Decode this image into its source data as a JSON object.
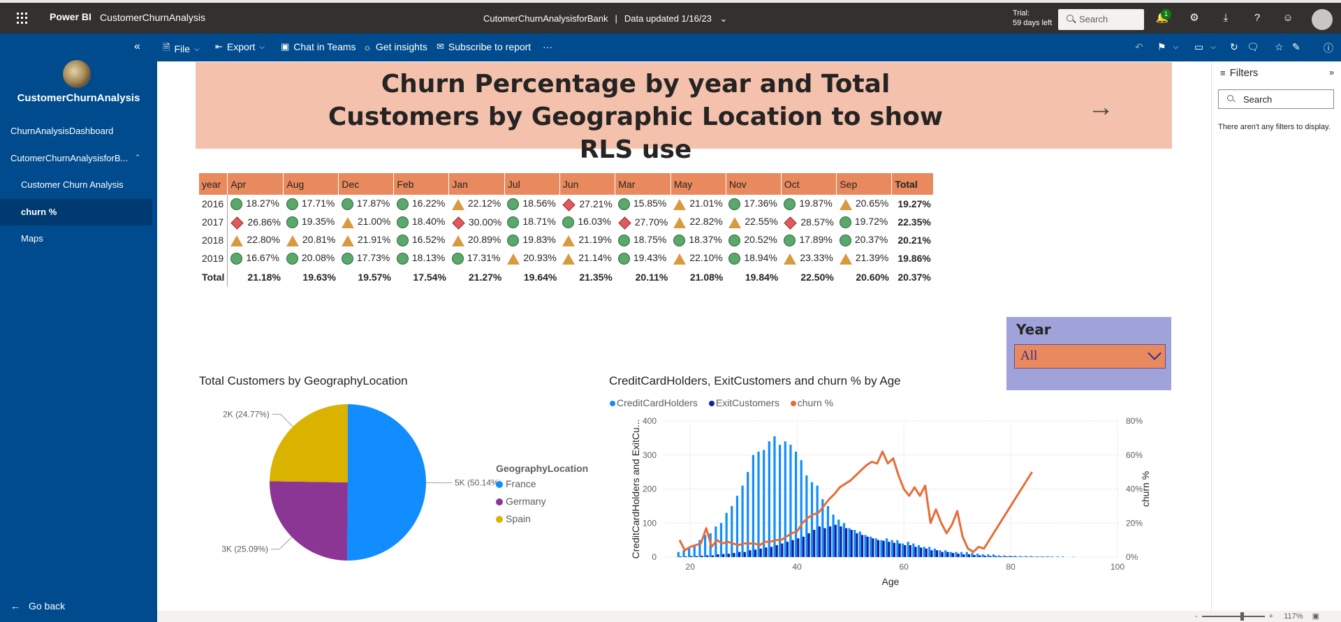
{
  "topbar": {
    "brand": "Power BI",
    "workspace": "CustomerChurnAnalysis",
    "report_name": "CutomerChurnAnalysisforBank",
    "separator": "|",
    "data_updated": "Data updated 1/16/23",
    "trial_line1": "Trial:",
    "trial_line2": "59 days left",
    "search_placeholder": "Search",
    "notification_count": "1"
  },
  "sidebar": {
    "workspace_name": "CustomerChurnAnalysis",
    "items": [
      {
        "label": "ChurnAnalysisDashboard"
      },
      {
        "label": "CutomerChurnAnalysisforB..."
      },
      {
        "label": "Customer Churn Analysis"
      },
      {
        "label": "churn %"
      },
      {
        "label": "Maps"
      }
    ],
    "go_back": "Go back"
  },
  "actions": {
    "file": "File",
    "export": "Export",
    "chat_in_teams": "Chat in Teams",
    "get_insights": "Get insights",
    "subscribe": "Subscribe to report",
    "more": "···"
  },
  "banner": {
    "title": "Churn Percentage by year and Total Customers by Geographic Location to show RLS use"
  },
  "matrix": {
    "headers": [
      "year",
      "Apr",
      "Aug",
      "Dec",
      "Feb",
      "Jan",
      "Jul",
      "Jun",
      "Mar",
      "May",
      "Nov",
      "Oct",
      "Sep",
      "Total"
    ],
    "rows": [
      {
        "year": "2016",
        "cells": [
          [
            "circle",
            "18.27%"
          ],
          [
            "circle",
            "17.71%"
          ],
          [
            "circle",
            "17.87%"
          ],
          [
            "circle",
            "16.22%"
          ],
          [
            "tri",
            "22.12%"
          ],
          [
            "circle",
            "18.56%"
          ],
          [
            "diamond",
            "27.21%"
          ],
          [
            "circle",
            "15.85%"
          ],
          [
            "tri",
            "21.01%"
          ],
          [
            "circle",
            "17.36%"
          ],
          [
            "circle",
            "19.87%"
          ],
          [
            "tri",
            "20.65%"
          ]
        ],
        "total": "19.27%"
      },
      {
        "year": "2017",
        "cells": [
          [
            "diamond",
            "26.86%"
          ],
          [
            "circle",
            "19.35%"
          ],
          [
            "tri",
            "21.00%"
          ],
          [
            "circle",
            "18.40%"
          ],
          [
            "diamond",
            "30.00%"
          ],
          [
            "circle",
            "18.71%"
          ],
          [
            "circle",
            "16.03%"
          ],
          [
            "diamond",
            "27.70%"
          ],
          [
            "tri",
            "22.82%"
          ],
          [
            "tri",
            "22.55%"
          ],
          [
            "diamond",
            "28.57%"
          ],
          [
            "circle",
            "19.72%"
          ]
        ],
        "total": "22.35%"
      },
      {
        "year": "2018",
        "cells": [
          [
            "tri",
            "22.80%"
          ],
          [
            "tri",
            "20.81%"
          ],
          [
            "tri",
            "21.91%"
          ],
          [
            "circle",
            "16.52%"
          ],
          [
            "tri",
            "20.89%"
          ],
          [
            "circle",
            "19.83%"
          ],
          [
            "tri",
            "21.19%"
          ],
          [
            "circle",
            "18.75%"
          ],
          [
            "circle",
            "18.37%"
          ],
          [
            "circle",
            "20.52%"
          ],
          [
            "circle",
            "17.89%"
          ],
          [
            "circle",
            "20.37%"
          ]
        ],
        "total": "20.21%"
      },
      {
        "year": "2019",
        "cells": [
          [
            "circle",
            "16.67%"
          ],
          [
            "circle",
            "20.08%"
          ],
          [
            "circle",
            "17.73%"
          ],
          [
            "circle",
            "18.13%"
          ],
          [
            "circle",
            "17.31%"
          ],
          [
            "tri",
            "20.93%"
          ],
          [
            "tri",
            "21.14%"
          ],
          [
            "circle",
            "19.43%"
          ],
          [
            "tri",
            "22.10%"
          ],
          [
            "circle",
            "18.94%"
          ],
          [
            "tri",
            "23.33%"
          ],
          [
            "tri",
            "21.39%"
          ]
        ],
        "total": "19.86%"
      }
    ],
    "total_label": "Total",
    "totals": [
      "21.18%",
      "19.63%",
      "19.57%",
      "17.54%",
      "21.27%",
      "19.64%",
      "21.35%",
      "20.11%",
      "21.08%",
      "19.84%",
      "22.50%",
      "20.60%",
      "20.37%"
    ]
  },
  "slicer": {
    "title": "Year",
    "value": "All"
  },
  "filters": {
    "title": "Filters",
    "search_placeholder": "Search",
    "empty_message": "There aren't any filters to display."
  },
  "statusbar": {
    "zoom": "117%",
    "minus": "-",
    "plus": "+"
  },
  "colors": {
    "france": "#118dff",
    "germany": "#8b3594",
    "spain": "#d9b300",
    "credit": "#118dff",
    "exit": "#12239e",
    "churn": "#e66c37"
  },
  "chart_data": [
    {
      "type": "pie",
      "title": "Total Customers by GeographyLocation",
      "legend_title": "GeographyLocation",
      "categories": [
        "France",
        "Germany",
        "Spain"
      ],
      "values": [
        50.14,
        25.09,
        24.77
      ],
      "data_labels": [
        "5K (50.14%)",
        "3K (25.09%)",
        "2K (24.77%)"
      ]
    },
    {
      "type": "bar",
      "title": "CreditCardHolders, ExitCustomers and churn % by Age",
      "xlabel": "Age",
      "ylabel": "CreditCardHolders and ExitCu...",
      "y2label": "churn %",
      "xlim": [
        15,
        100
      ],
      "ylim": [
        0,
        400
      ],
      "y2lim": [
        0,
        80
      ],
      "x_ticks": [
        "20",
        "40",
        "60",
        "80",
        "100"
      ],
      "y_ticks": [
        "0",
        "100",
        "200",
        "300",
        "400"
      ],
      "y2_ticks": [
        "0%",
        "20%",
        "40%",
        "60%",
        "80%"
      ],
      "series": [
        {
          "name": "CreditCardHolders",
          "type": "bar",
          "x": [
            18,
            19,
            20,
            21,
            22,
            23,
            24,
            25,
            26,
            27,
            28,
            29,
            30,
            31,
            32,
            33,
            34,
            35,
            36,
            37,
            38,
            39,
            40,
            41,
            42,
            43,
            44,
            45,
            46,
            47,
            48,
            49,
            50,
            51,
            52,
            53,
            54,
            55,
            56,
            57,
            58,
            59,
            60,
            61,
            62,
            63,
            64,
            65,
            66,
            67,
            68,
            69,
            70,
            71,
            72,
            73,
            74,
            75,
            76,
            77,
            78,
            79,
            80,
            81,
            82,
            83,
            84,
            85,
            86,
            87,
            88,
            89,
            90,
            92
          ],
          "values": [
            15,
            20,
            28,
            35,
            50,
            65,
            70,
            90,
            100,
            130,
            150,
            180,
            210,
            250,
            300,
            310,
            315,
            340,
            355,
            330,
            340,
            330,
            310,
            285,
            240,
            220,
            210,
            170,
            150,
            125,
            110,
            100,
            85,
            80,
            75,
            65,
            60,
            55,
            50,
            55,
            50,
            50,
            40,
            45,
            40,
            35,
            30,
            30,
            25,
            20,
            20,
            15,
            15,
            15,
            15,
            12,
            10,
            8,
            8,
            8,
            5,
            5,
            4,
            4,
            3,
            3,
            3,
            2,
            2,
            2,
            2,
            2,
            2,
            1
          ]
        },
        {
          "name": "ExitCustomers",
          "type": "bar",
          "x": [
            18,
            19,
            20,
            21,
            22,
            23,
            24,
            25,
            26,
            27,
            28,
            29,
            30,
            31,
            32,
            33,
            34,
            35,
            36,
            37,
            38,
            39,
            40,
            41,
            42,
            43,
            44,
            45,
            46,
            47,
            48,
            49,
            50,
            51,
            52,
            53,
            54,
            55,
            56,
            57,
            58,
            59,
            60,
            61,
            62,
            63,
            64,
            65,
            66,
            67,
            68,
            69,
            70,
            71,
            72,
            73,
            74,
            75,
            76,
            77,
            78,
            79,
            80,
            81,
            82,
            83,
            84,
            85,
            86,
            87,
            88,
            89,
            90,
            92
          ],
          "values": [
            2,
            2,
            3,
            3,
            4,
            5,
            5,
            8,
            9,
            10,
            12,
            15,
            15,
            20,
            22,
            25,
            28,
            30,
            35,
            40,
            45,
            50,
            55,
            60,
            70,
            80,
            90,
            85,
            90,
            95,
            90,
            85,
            80,
            70,
            65,
            60,
            55,
            50,
            48,
            45,
            42,
            40,
            35,
            35,
            30,
            28,
            25,
            20,
            20,
            15,
            15,
            12,
            10,
            8,
            8,
            6,
            5,
            4,
            3,
            3,
            2,
            2,
            2,
            1,
            1,
            1,
            1,
            1,
            1,
            1,
            0,
            0,
            0,
            0
          ]
        },
        {
          "name": "churn %",
          "type": "line",
          "axis": "y2",
          "x": [
            18,
            19,
            20,
            21,
            22,
            23,
            24,
            25,
            26,
            27,
            28,
            29,
            30,
            31,
            32,
            33,
            34,
            35,
            36,
            37,
            38,
            39,
            40,
            41,
            42,
            43,
            44,
            45,
            46,
            47,
            48,
            49,
            50,
            51,
            52,
            53,
            54,
            55,
            56,
            57,
            58,
            59,
            60,
            61,
            62,
            63,
            64,
            65,
            66,
            67,
            68,
            69,
            70,
            71,
            72,
            73,
            74,
            75,
            76,
            84
          ],
          "values": [
            10,
            4,
            6,
            7,
            8,
            17,
            6,
            10,
            8,
            9,
            8,
            7,
            8,
            8,
            8,
            7,
            9,
            9,
            10,
            10,
            12,
            14,
            15,
            20,
            23,
            25,
            26,
            30,
            34,
            37,
            41,
            43,
            45,
            48,
            51,
            54,
            56,
            55,
            62,
            55,
            58,
            48,
            40,
            36,
            41,
            36,
            42,
            20,
            28,
            20,
            14,
            19,
            27,
            12,
            5,
            3,
            6,
            5,
            10,
            50
          ]
        }
      ]
    }
  ]
}
